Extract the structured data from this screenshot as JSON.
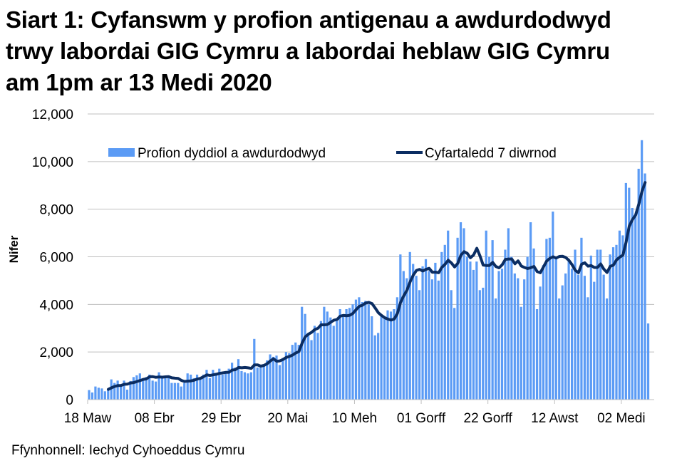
{
  "title": "Siart 1: Cyfanswm y profion antigenau a awdurdodwyd trwy labordai GIG Cymru a labordai heblaw GIG Cymru am 1pm ar 13 Medi 2020",
  "title_lines": [
    "Siart 1: Cyfanswm y profion antigenau a awdurdodwyd",
    "trwy labordai GIG Cymru a labordai heblaw GIG Cymru",
    "am 1pm ar 13 Medi 2020"
  ],
  "source": "Ffynhonnell: Iechyd Cyhoeddus Cymru",
  "colors": {
    "bars": "#5B9BF5",
    "line": "#0B2D62",
    "grid": "#BFBFBF"
  },
  "chart_data": {
    "type": "bar",
    "title": "Siart 1: Cyfanswm y profion antigenau a awdurdodwyd trwy labordai GIG Cymru a labordai heblaw GIG Cymru am 1pm ar 13 Medi 2020",
    "xlabel": "",
    "ylabel": "Nifer",
    "ylim": [
      0,
      12000
    ],
    "yticks": [
      "0",
      "2,000",
      "4,000",
      "6,000",
      "8,000",
      "10,000",
      "12,000"
    ],
    "xticks": [
      "18 Maw",
      "08 Ebr",
      "29 Ebr",
      "20 Mai",
      "10 Meh",
      "01 Gorff",
      "22 Gorff",
      "12 Awst",
      "02 Medi"
    ],
    "grid": true,
    "legend_position": "top",
    "x_start": "18 Maw",
    "x_end": "13 Medi",
    "series": [
      {
        "name": "Profion dyddiol a awdurdodwyd",
        "type": "bar",
        "values": [
          400,
          300,
          550,
          500,
          470,
          350,
          450,
          850,
          700,
          800,
          550,
          800,
          420,
          780,
          950,
          1020,
          1100,
          880,
          950,
          1050,
          800,
          760,
          1150,
          1000,
          1000,
          1000,
          700,
          700,
          700,
          550,
          700,
          1100,
          1050,
          900,
          1050,
          900,
          1050,
          1250,
          900,
          1250,
          1050,
          1300,
          1050,
          1200,
          1300,
          1550,
          1350,
          1700,
          1200,
          1150,
          1100,
          1150,
          2550,
          1350,
          1350,
          1400,
          1650,
          1900,
          1800,
          1850,
          1450,
          1750,
          2000,
          1950,
          2300,
          2400,
          2300,
          3900,
          3600,
          2800,
          2500,
          3100,
          2800,
          3300,
          3900,
          3700,
          3450,
          3100,
          3300,
          3800,
          3500,
          3800,
          3850,
          4000,
          4200,
          4300,
          4100,
          4150,
          4000,
          3500,
          2700,
          2800,
          3500,
          3450,
          3750,
          3700,
          3800,
          4300,
          6100,
          5400,
          5100,
          6200,
          5700,
          5200,
          4600,
          5600,
          5900,
          5400,
          5050,
          5750,
          5000,
          6200,
          6500,
          7100,
          4600,
          3850,
          6800,
          7450,
          7200,
          6000,
          5800,
          5450,
          5800,
          4600,
          4700,
          7100,
          6000,
          6700,
          4250,
          5400,
          5500,
          6300,
          7200,
          6000,
          5300,
          5100,
          3900,
          5050,
          6000,
          7450,
          6350,
          3800,
          4750,
          5650,
          6750,
          6800,
          7900,
          6000,
          4250,
          4800,
          5300,
          5900,
          5500,
          6300,
          5250,
          6800,
          5200,
          4300,
          6050,
          4950,
          6300,
          6300,
          5250,
          4250,
          6100,
          6400,
          6500,
          7100,
          6900,
          9100,
          8900,
          8050,
          7700,
          9700,
          10900,
          9500,
          3200
        ]
      },
      {
        "name": "Cyfartaledd 7 diwrnod",
        "type": "line",
        "values": "computed: trailing 7-day mean of daily values, starting at day 7"
      }
    ]
  }
}
